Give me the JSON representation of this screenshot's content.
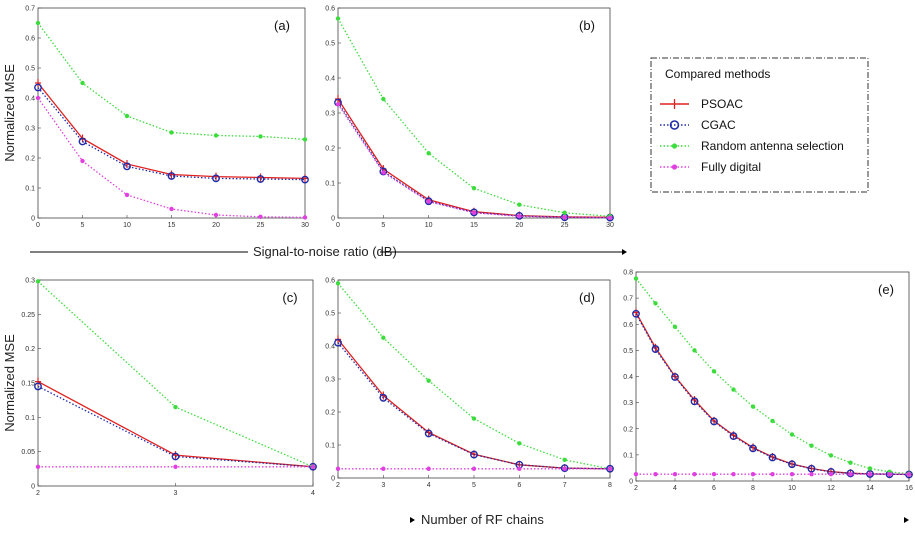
{
  "figure": {
    "shared_xlabels": {
      "top": "Signal-to-noise ratio (dB)",
      "bottom": "Number of RF chains"
    },
    "legend": {
      "title": "Compared methods",
      "entries": [
        "PSOAC",
        "CGAC",
        "Random antenna selection",
        "Fully digital"
      ]
    }
  },
  "chart_data": [
    {
      "type": "line",
      "panel_label": "(a)",
      "ylabel": "Normalized MSE",
      "xlabel": "",
      "x": [
        0,
        5,
        10,
        15,
        20,
        25,
        30
      ],
      "xticks": [
        "0",
        "5",
        "10",
        "15",
        "20",
        "25",
        "30"
      ],
      "ylim": [
        0,
        0.7
      ],
      "yticks": [
        "0",
        "0.1",
        "0.2",
        "0.3",
        "0.4",
        "0.5",
        "0.6",
        "0.7"
      ],
      "grid": false,
      "series": [
        {
          "name": "PSOAC",
          "values": [
            0.45,
            0.265,
            0.18,
            0.145,
            0.138,
            0.135,
            0.132
          ]
        },
        {
          "name": "CGAC",
          "values": [
            0.435,
            0.255,
            0.172,
            0.14,
            0.132,
            0.13,
            0.128
          ]
        },
        {
          "name": "Random antenna selection",
          "values": [
            0.65,
            0.45,
            0.34,
            0.285,
            0.275,
            0.272,
            0.262
          ]
        },
        {
          "name": "Fully digital",
          "values": [
            0.4,
            0.19,
            0.077,
            0.03,
            0.01,
            0.004,
            0.002
          ]
        }
      ]
    },
    {
      "type": "line",
      "panel_label": "(b)",
      "ylabel": "",
      "xlabel": "",
      "x": [
        0,
        5,
        10,
        15,
        20,
        25,
        30
      ],
      "xticks": [
        "0",
        "5",
        "10",
        "15",
        "20",
        "25",
        "30"
      ],
      "ylim": [
        0,
        0.6
      ],
      "yticks": [
        "0",
        "0.1",
        "0.2",
        "0.3",
        "0.4",
        "0.5",
        "0.6"
      ],
      "grid": false,
      "series": [
        {
          "name": "PSOAC",
          "values": [
            0.34,
            0.14,
            0.052,
            0.018,
            0.007,
            0.003,
            0.002
          ]
        },
        {
          "name": "CGAC",
          "values": [
            0.33,
            0.133,
            0.048,
            0.016,
            0.006,
            0.002,
            0.001
          ]
        },
        {
          "name": "Random antenna selection",
          "values": [
            0.57,
            0.34,
            0.185,
            0.085,
            0.038,
            0.015,
            0.005
          ]
        },
        {
          "name": "Fully digital",
          "values": [
            0.325,
            0.13,
            0.047,
            0.015,
            0.005,
            0.002,
            0.001
          ]
        }
      ]
    },
    {
      "type": "line",
      "panel_label": "(c)",
      "ylabel": "Normalized MSE",
      "xlabel": "",
      "x": [
        2,
        3,
        4
      ],
      "xticks": [
        "2",
        "3",
        "4"
      ],
      "ylim": [
        0,
        0.3
      ],
      "yticks": [
        "0",
        "0.05",
        "0.1",
        "0.15",
        "0.2",
        "0.25",
        "0.3"
      ],
      "grid": false,
      "series": [
        {
          "name": "PSOAC",
          "values": [
            0.152,
            0.045,
            0.028
          ]
        },
        {
          "name": "CGAC",
          "values": [
            0.145,
            0.043,
            0.028
          ]
        },
        {
          "name": "Random antenna selection",
          "values": [
            0.298,
            0.115,
            0.028
          ]
        },
        {
          "name": "Fully digital",
          "values": [
            0.028,
            0.028,
            0.028
          ]
        }
      ]
    },
    {
      "type": "line",
      "panel_label": "(d)",
      "ylabel": "",
      "xlabel": "",
      "x": [
        2,
        3,
        4,
        5,
        6,
        7,
        8
      ],
      "xticks": [
        "2",
        "3",
        "4",
        "5",
        "6",
        "7",
        "8"
      ],
      "ylim": [
        0,
        0.6
      ],
      "yticks": [
        "0",
        "0.1",
        "0.2",
        "0.3",
        "0.4",
        "0.5",
        "0.6"
      ],
      "grid": false,
      "series": [
        {
          "name": "PSOAC",
          "values": [
            0.42,
            0.25,
            0.138,
            0.072,
            0.04,
            0.03,
            0.028
          ]
        },
        {
          "name": "CGAC",
          "values": [
            0.41,
            0.243,
            0.135,
            0.071,
            0.04,
            0.03,
            0.028
          ]
        },
        {
          "name": "Random antenna selection",
          "values": [
            0.59,
            0.425,
            0.295,
            0.18,
            0.105,
            0.055,
            0.028
          ]
        },
        {
          "name": "Fully digital",
          "values": [
            0.028,
            0.028,
            0.028,
            0.028,
            0.028,
            0.028,
            0.028
          ]
        }
      ]
    },
    {
      "type": "line",
      "panel_label": "(e)",
      "ylabel": "",
      "xlabel": "",
      "x": [
        2,
        3,
        4,
        5,
        6,
        7,
        8,
        9,
        10,
        11,
        12,
        13,
        14,
        15,
        16
      ],
      "xticks": [
        "2",
        "4",
        "6",
        "8",
        "10",
        "12",
        "14",
        "16"
      ],
      "ylim": [
        0,
        0.8
      ],
      "yticks": [
        "0",
        "0.1",
        "0.2",
        "0.3",
        "0.4",
        "0.5",
        "0.6",
        "0.7",
        "0.8"
      ],
      "grid": false,
      "series": [
        {
          "name": "PSOAC",
          "values": [
            0.645,
            0.51,
            0.4,
            0.31,
            0.23,
            0.175,
            0.128,
            0.092,
            0.065,
            0.048,
            0.036,
            0.03,
            0.027,
            0.026,
            0.025
          ]
        },
        {
          "name": "CGAC",
          "values": [
            0.64,
            0.505,
            0.398,
            0.305,
            0.228,
            0.172,
            0.125,
            0.09,
            0.064,
            0.047,
            0.035,
            0.029,
            0.027,
            0.026,
            0.025
          ]
        },
        {
          "name": "Random antenna selection",
          "values": [
            0.775,
            0.68,
            0.59,
            0.5,
            0.42,
            0.35,
            0.285,
            0.23,
            0.178,
            0.135,
            0.098,
            0.07,
            0.048,
            0.035,
            0.028
          ]
        },
        {
          "name": "Fully digital",
          "values": [
            0.026,
            0.026,
            0.026,
            0.026,
            0.026,
            0.026,
            0.026,
            0.026,
            0.026,
            0.026,
            0.026,
            0.026,
            0.026,
            0.026,
            0.026
          ]
        }
      ]
    }
  ]
}
